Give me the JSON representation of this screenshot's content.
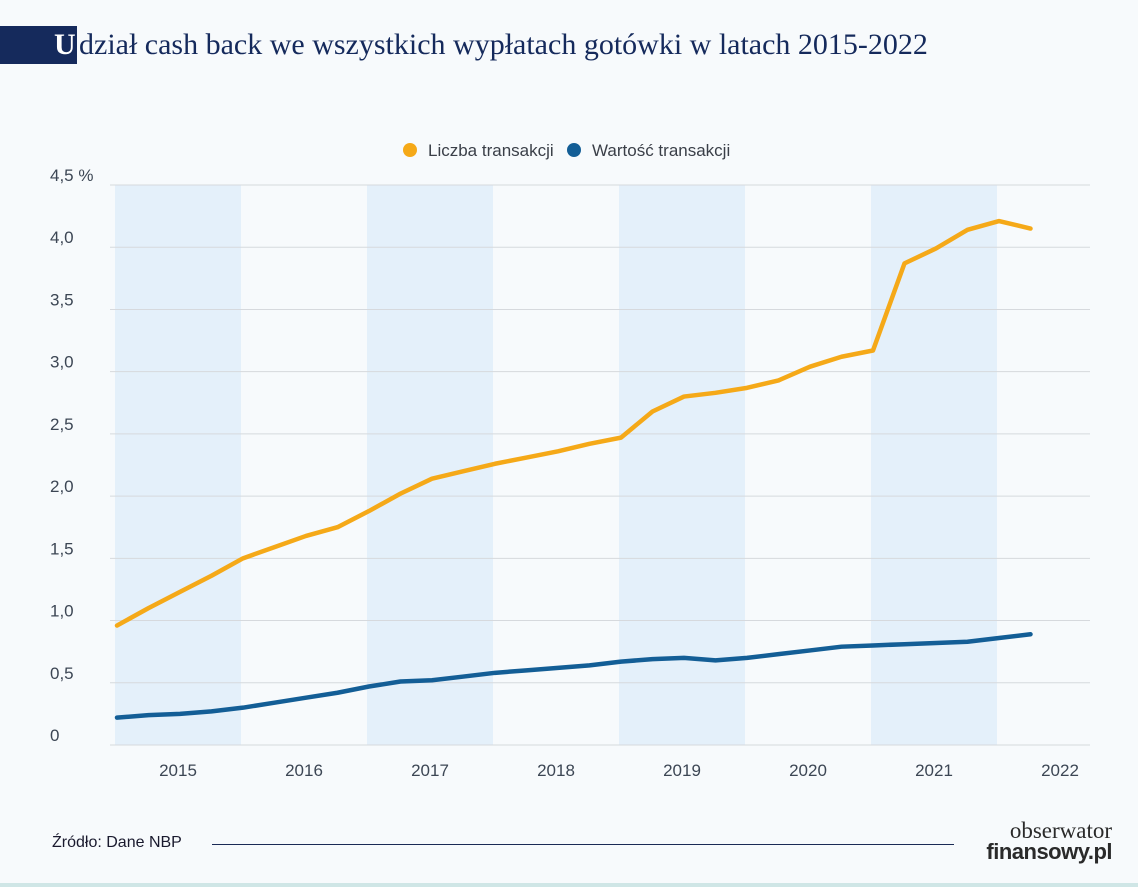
{
  "title": {
    "first_letter": "U",
    "rest": "dział cash back we wszystkich wypłatach gotówki w latach 2015-2022"
  },
  "source": "Źródło: Dane NBP",
  "brand": {
    "line1": "obserwator",
    "line2": "finansowy.pl"
  },
  "colors": {
    "navy": "#152a5c",
    "series1": "#f5a918",
    "series2": "#135e96",
    "band": "#e4f0fa",
    "grid": "#d6d9dd",
    "axis_text": "#3c4654"
  },
  "chart_data": {
    "type": "line",
    "title": "Udział cash back we wszystkich wypłatach gotówki w latach 2015-2022",
    "xlabel": "",
    "ylabel": "",
    "y_unit": "%",
    "ylim": [
      0,
      4.5
    ],
    "y_ticks": [
      0,
      0.5,
      1.0,
      1.5,
      2.0,
      2.5,
      3.0,
      3.5,
      4.0,
      4.5
    ],
    "y_tick_labels": [
      "0",
      "0,5",
      "1,0",
      "1,5",
      "2,0",
      "2,5",
      "3,0",
      "3,5",
      "4,0",
      "4,5 %"
    ],
    "years": [
      "2015",
      "2016",
      "2017",
      "2018",
      "2019",
      "2020",
      "2021",
      "2022"
    ],
    "shaded_years": [
      "2015",
      "2017",
      "2019",
      "2021"
    ],
    "grid": true,
    "legend_position": "top-center",
    "x": [
      "2015 Q1",
      "2015 Q2",
      "2015 Q3",
      "2015 Q4",
      "2016 Q1",
      "2016 Q2",
      "2016 Q3",
      "2016 Q4",
      "2017 Q1",
      "2017 Q2",
      "2017 Q3",
      "2017 Q4",
      "2018 Q1",
      "2018 Q2",
      "2018 Q3",
      "2018 Q4",
      "2019 Q1",
      "2019 Q2",
      "2019 Q3",
      "2019 Q4",
      "2020 Q1",
      "2020 Q2",
      "2020 Q3",
      "2020 Q4",
      "2021 Q1",
      "2021 Q2",
      "2021 Q3",
      "2021 Q4",
      "2022 Q1",
      "2022 Q2"
    ],
    "series": [
      {
        "name": "Liczba transakcji",
        "color": "#f5a918",
        "values": [
          0.96,
          1.1,
          1.23,
          1.36,
          1.5,
          1.59,
          1.68,
          1.75,
          1.88,
          2.02,
          2.14,
          2.2,
          2.26,
          2.31,
          2.36,
          2.42,
          2.47,
          2.68,
          2.8,
          2.83,
          2.87,
          2.93,
          3.04,
          3.12,
          3.17,
          3.87,
          3.99,
          4.14,
          4.21,
          4.15
        ]
      },
      {
        "name": "Wartość transakcji",
        "color": "#135e96",
        "values": [
          0.22,
          0.24,
          0.25,
          0.27,
          0.3,
          0.34,
          0.38,
          0.42,
          0.47,
          0.51,
          0.52,
          0.55,
          0.58,
          0.6,
          0.62,
          0.64,
          0.67,
          0.69,
          0.7,
          0.68,
          0.7,
          0.73,
          0.76,
          0.79,
          0.8,
          0.81,
          0.82,
          0.83,
          0.86,
          0.89
        ]
      }
    ]
  }
}
